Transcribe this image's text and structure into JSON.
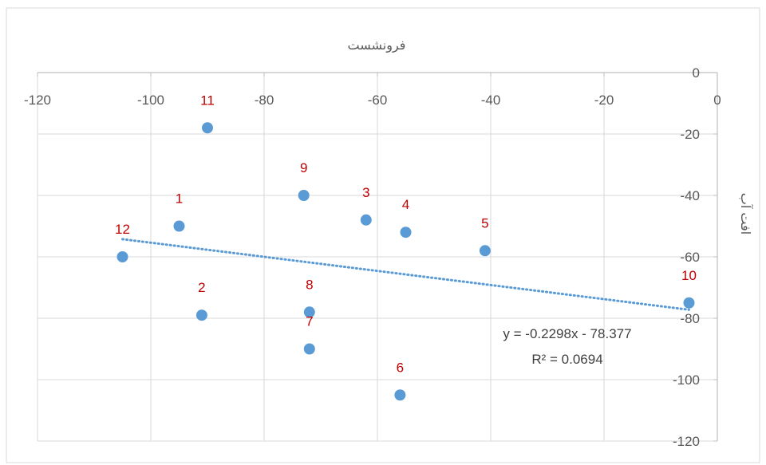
{
  "chart_data": {
    "type": "scatter",
    "title": "",
    "xlabel": "فرونشست",
    "ylabel": "افت آب",
    "xlim": [
      -120,
      0
    ],
    "ylim": [
      -120,
      0
    ],
    "x_ticks": [
      -120,
      -100,
      -80,
      -60,
      -40,
      -20,
      0
    ],
    "y_ticks": [
      0,
      -20,
      -40,
      -60,
      -80,
      -100,
      -120
    ],
    "grid": true,
    "legend": "none",
    "marker_color": "#5b9bd5",
    "label_color": "#c00000",
    "trendline_color": "#5b9bd5",
    "points": [
      {
        "label": "1",
        "x": -95,
        "y": -50
      },
      {
        "label": "2",
        "x": -91,
        "y": -79
      },
      {
        "label": "3",
        "x": -62,
        "y": -48
      },
      {
        "label": "4",
        "x": -55,
        "y": -52
      },
      {
        "label": "5",
        "x": -41,
        "y": -58
      },
      {
        "label": "6",
        "x": -56,
        "y": -105
      },
      {
        "label": "7",
        "x": -72,
        "y": -90
      },
      {
        "label": "8",
        "x": -72,
        "y": -78
      },
      {
        "label": "9",
        "x": -73,
        "y": -40
      },
      {
        "label": "10",
        "x": -5,
        "y": -75
      },
      {
        "label": "11",
        "x": -90,
        "y": -18
      },
      {
        "label": "12",
        "x": -105,
        "y": -60
      }
    ],
    "trendline": {
      "type": "linear",
      "slope": -0.2298,
      "intercept": -78.377,
      "x_range": [
        -105,
        -5
      ],
      "equation_text": "y = -0.2298x - 78.377",
      "r2_text": "R² = 0.0694"
    }
  }
}
